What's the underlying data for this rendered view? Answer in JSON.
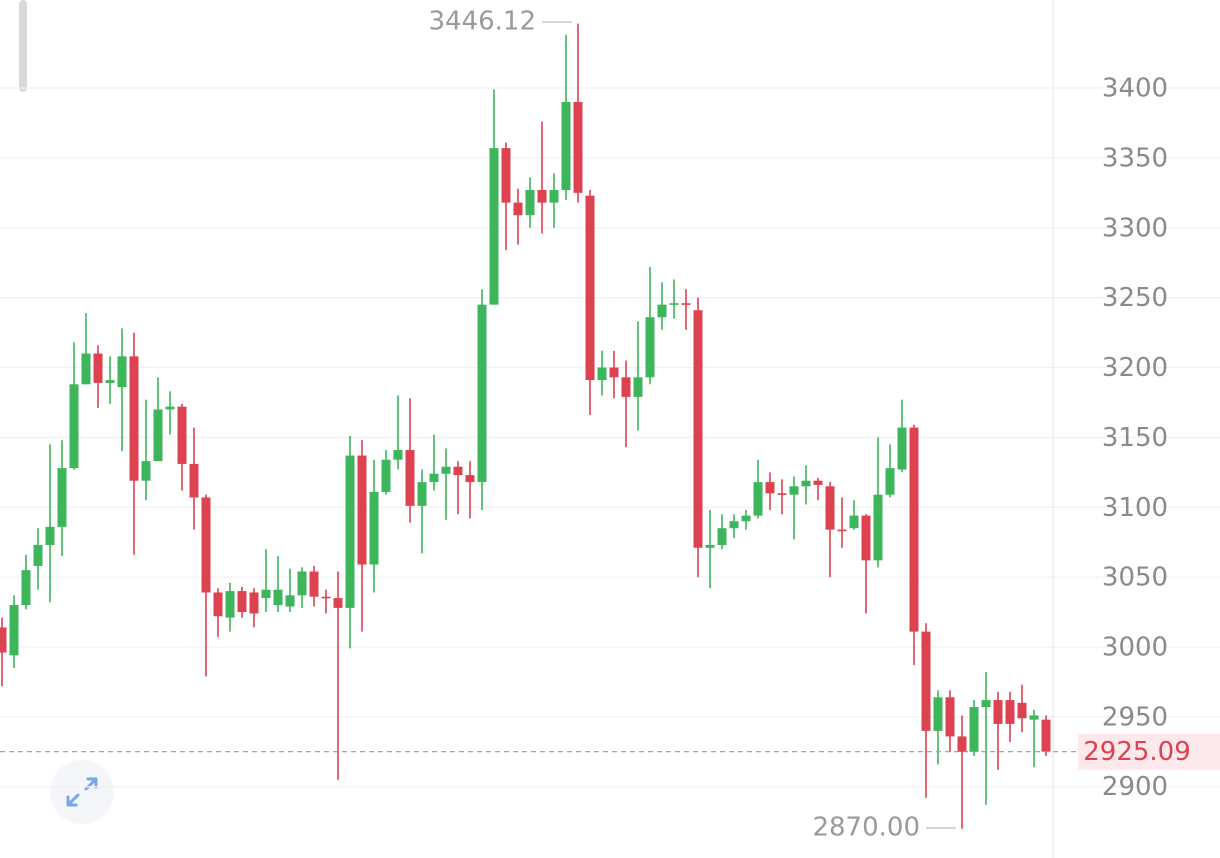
{
  "chart_data": {
    "type": "candlestick",
    "open": [
      3014,
      2994,
      3030,
      3058,
      3073,
      3086,
      3128,
      3188,
      3210,
      3189,
      3186,
      3208,
      3119,
      3133,
      3170,
      3172,
      3131,
      3107,
      3039,
      3021,
      3040,
      3039,
      3035,
      3030,
      3029,
      3037,
      3054,
      3036,
      3035,
      3028,
      3137,
      3059,
      3111,
      3134,
      3141,
      3101,
      3118,
      3124,
      3129,
      3123,
      3118,
      3245,
      3357,
      3318,
      3309,
      3327,
      3318,
      3327,
      3390,
      3323,
      3191,
      3200,
      3193,
      3179,
      3193,
      3236,
      3245,
      3246,
      3241,
      3071,
      3073,
      3085,
      3090,
      3094,
      3118,
      3110,
      3109,
      3115,
      3119,
      3115,
      3084,
      3085,
      3094,
      3062,
      3109,
      3127,
      3157,
      3011,
      2940,
      2964,
      2936,
      2925,
      2957,
      2962,
      2962,
      2960,
      2948,
      2948
    ],
    "high": [
      3021,
      3037,
      3066,
      3085,
      3145,
      3148,
      3218,
      3239,
      3216,
      3208,
      3228,
      3225,
      3177,
      3193,
      3183,
      3174,
      3157,
      3109,
      3042,
      3046,
      3043,
      3042,
      3070,
      3065,
      3056,
      3057,
      3058,
      3041,
      3054,
      3151,
      3148,
      3134,
      3141,
      3180,
      3178,
      3127,
      3152,
      3142,
      3133,
      3133,
      3256,
      3399,
      3361,
      3328,
      3336,
      3376,
      3339,
      3438,
      3446.12,
      3327,
      3212,
      3212,
      3205,
      3233,
      3272,
      3261,
      3263,
      3256,
      3250,
      3098,
      3095,
      3095,
      3098,
      3134,
      3125,
      3120,
      3122,
      3130,
      3121,
      3118,
      3107,
      3105,
      3095,
      3150,
      3145,
      3177,
      3159,
      3017,
      2969,
      2969,
      2951,
      2962,
      2982,
      2968,
      2968,
      2973,
      2955,
      2951
    ],
    "low": [
      2972,
      2985,
      3027,
      3041,
      3032,
      3065,
      3127,
      3188,
      3171,
      3174,
      3140,
      3066,
      3105,
      3133,
      3152,
      3112,
      3084,
      2979,
      3007,
      3011,
      3021,
      3014,
      3025,
      3025,
      3025,
      3028,
      3029,
      3024,
      2905,
      2999,
      3011,
      3039,
      3109,
      3127,
      3089,
      3067,
      3112,
      3091,
      3095,
      3092,
      3098,
      3245,
      3284,
      3288,
      3300,
      3296,
      3300,
      3320,
      3318,
      3166,
      3180,
      3178,
      3143,
      3155,
      3188,
      3227,
      3235,
      3227,
      3050,
      3042,
      3070,
      3078,
      3084,
      3092,
      3098,
      3095,
      3077,
      3102,
      3105,
      3050,
      3071,
      3084,
      3024,
      3057,
      3107,
      3125,
      2987,
      2892,
      2916,
      2925,
      2870,
      2922,
      2887,
      2912,
      2932,
      2939,
      2914,
      2922
    ],
    "close": [
      2996,
      3030,
      3055,
      3073,
      3086,
      3128,
      3188,
      3210,
      3189,
      3191,
      3208,
      3119,
      3133,
      3170,
      3172,
      3131,
      3107,
      3039,
      3022,
      3040,
      3025,
      3024,
      3041,
      3041,
      3037,
      3054,
      3036,
      3035,
      3028,
      3137,
      3059,
      3111,
      3134,
      3141,
      3101,
      3118,
      3124,
      3129,
      3123,
      3118,
      3245,
      3357,
      3318,
      3309,
      3327,
      3318,
      3327,
      3390,
      3325,
      3191,
      3200,
      3193,
      3179,
      3193,
      3236,
      3245,
      3246,
      3245,
      3071,
      3073,
      3085,
      3090,
      3094,
      3118,
      3110,
      3109,
      3115,
      3119,
      3116,
      3084,
      3083,
      3094,
      3062,
      3109,
      3128,
      3157,
      3011,
      2940,
      2964,
      2936,
      2925,
      2957,
      2962,
      2945,
      2945,
      2949,
      2951,
      2925.09
    ],
    "up_color": "#3cb55b",
    "down_color": "#dc4250",
    "ylim": [
      2849,
      3463
    ],
    "yticks": [
      2900,
      2950,
      3000,
      3050,
      3100,
      3150,
      3200,
      3250,
      3300,
      3350,
      3400
    ],
    "grid": true,
    "max_label": 3446.12,
    "min_label": {
      "value": 2870,
      "label": "2870.00"
    },
    "last_price": 2925.09
  }
}
